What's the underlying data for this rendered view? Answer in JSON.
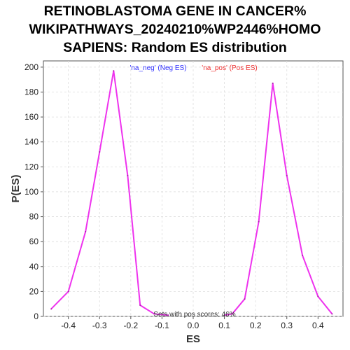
{
  "chart_data": {
    "type": "line",
    "title_lines": [
      "RETINOBLASTOMA GENE IN CANCER%",
      "WIKIPATHWAYS_20240210%WP2446%HOMO",
      "SAPIENS: Random ES distribution"
    ],
    "xlabel": "ES",
    "ylabel": "P(ES)",
    "xlim": [
      -0.48,
      0.48
    ],
    "ylim": [
      0,
      205
    ],
    "x_ticks": [
      -0.4,
      -0.3,
      -0.2,
      -0.1,
      0.0,
      0.1,
      0.2,
      0.3,
      0.4
    ],
    "x_tick_labels": [
      "-0.4",
      "-0.3",
      "-0.2",
      "-0.1",
      "0.0",
      "0.1",
      "0.2",
      "0.3",
      "0.4"
    ],
    "y_ticks": [
      0,
      20,
      40,
      60,
      80,
      100,
      120,
      140,
      160,
      180,
      200
    ],
    "y_tick_labels": [
      "0",
      "20",
      "40",
      "60",
      "80",
      "100",
      "120",
      "140",
      "160",
      "180",
      "200"
    ],
    "grid": true,
    "legend": {
      "placement": "top-center",
      "entries": [
        {
          "label": "'na_neg' (Neg ES)",
          "color": "#3333ff"
        },
        {
          "label": "'na_pos' (Pos ES)",
          "color": "#ee3333"
        }
      ]
    },
    "annotation": "Sets with pos scores: 46%",
    "line_color": "#ee33ee",
    "series": [
      {
        "x": [
          -0.455,
          -0.4,
          -0.345,
          -0.3,
          -0.255,
          -0.21,
          -0.17,
          -0.125,
          -0.08
        ],
        "y": [
          6,
          20,
          68,
          132,
          197,
          113,
          9,
          2,
          1
        ]
      },
      {
        "x": [
          0.1,
          0.125,
          0.165,
          0.21,
          0.255,
          0.3,
          0.35,
          0.4,
          0.445
        ],
        "y": [
          1,
          2,
          14,
          76,
          187,
          113,
          49,
          16,
          2
        ]
      }
    ]
  }
}
